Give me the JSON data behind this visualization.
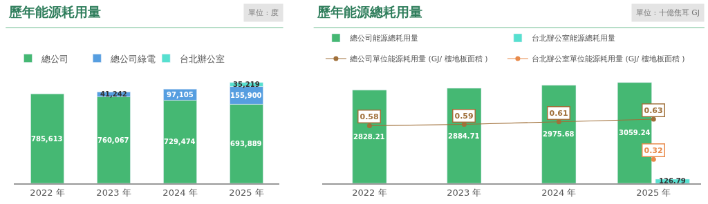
{
  "chart_data": [
    {
      "type": "bar",
      "title": "歷年能源耗用量",
      "subtitle": "單位 : 度",
      "categories": [
        "2022 年",
        "2023 年",
        "2024 年",
        "2025 年"
      ],
      "stacked": true,
      "legend": "top",
      "series": [
        {
          "name": "總公司",
          "color": "#45b873",
          "values": [
            785613,
            760067,
            729474,
            693889
          ],
          "value_labels": [
            "785,613",
            "760,067",
            "729,474",
            "693,889"
          ]
        },
        {
          "name": "總公司綠電",
          "color": "#569ee0",
          "values": [
            null,
            41242,
            97105,
            155900
          ],
          "value_labels": [
            null,
            "41,242",
            "97,105",
            "155,900"
          ]
        },
        {
          "name": "台北辦公室",
          "color": "#56e0cf",
          "values": [
            null,
            null,
            null,
            35219
          ],
          "value_labels": [
            null,
            null,
            null,
            "35,219"
          ]
        }
      ]
    },
    {
      "type": "bar",
      "title": "歷年能源總耗用量",
      "subtitle": "單位 : 十億焦耳 GJ",
      "categories": [
        "2022 年",
        "2023 年",
        "2024 年",
        "2025 年"
      ],
      "data_labels": true,
      "legend": "top",
      "marker": "circle",
      "series": [
        {
          "name": "總公司能源總耗用量",
          "color": "#45b873",
          "values": [
            2828.21,
            2884.71,
            2975.68,
            3059.24
          ]
        },
        {
          "name": "台北辦公室能源總耗用量",
          "color": "#56e0cf",
          "values": [
            null,
            null,
            null,
            126.79
          ]
        },
        {
          "name": "總公司單位能源耗用量 (GJ/ 樓地板面積 )",
          "type": "line",
          "axis": "y2",
          "color": "#a0703a",
          "values": [
            0.58,
            0.59,
            0.61,
            0.63
          ]
        },
        {
          "name": "台北辦公室單位能源耗用量 (GJ/ 樓地板面積 )",
          "type": "line",
          "axis": "y2",
          "color": "#e88a4a",
          "values": [
            null,
            null,
            null,
            0.32
          ]
        }
      ]
    }
  ]
}
